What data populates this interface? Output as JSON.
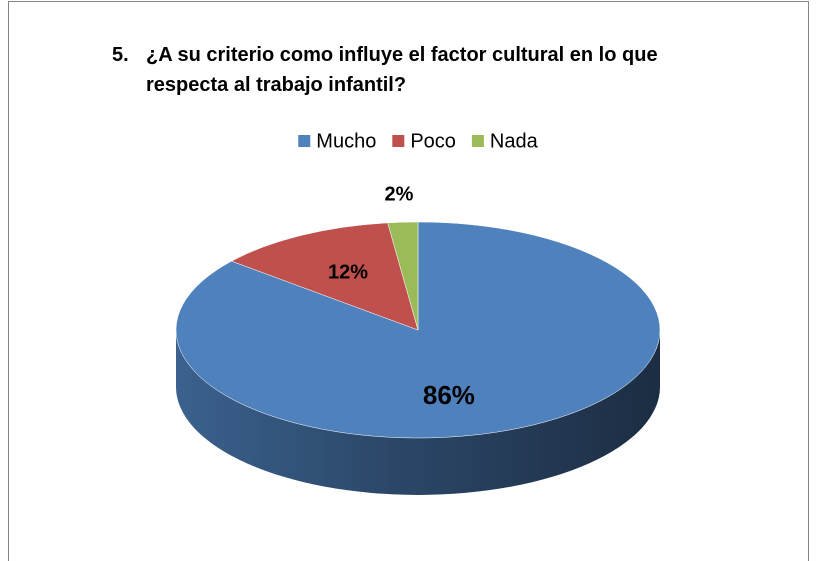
{
  "chart_data": {
    "type": "pie3d",
    "number": "5.",
    "title": "¿A su criterio como influye el factor cultural en lo que respecta al trabajo infantil?",
    "categories": [
      "Mucho",
      "Poco",
      "Nada"
    ],
    "values": [
      86,
      12,
      2
    ],
    "value_labels": [
      "86%",
      "12%",
      "2%"
    ],
    "colors": [
      "#4f81bd",
      "#c0504d",
      "#9bbb59"
    ],
    "legend": "top"
  }
}
